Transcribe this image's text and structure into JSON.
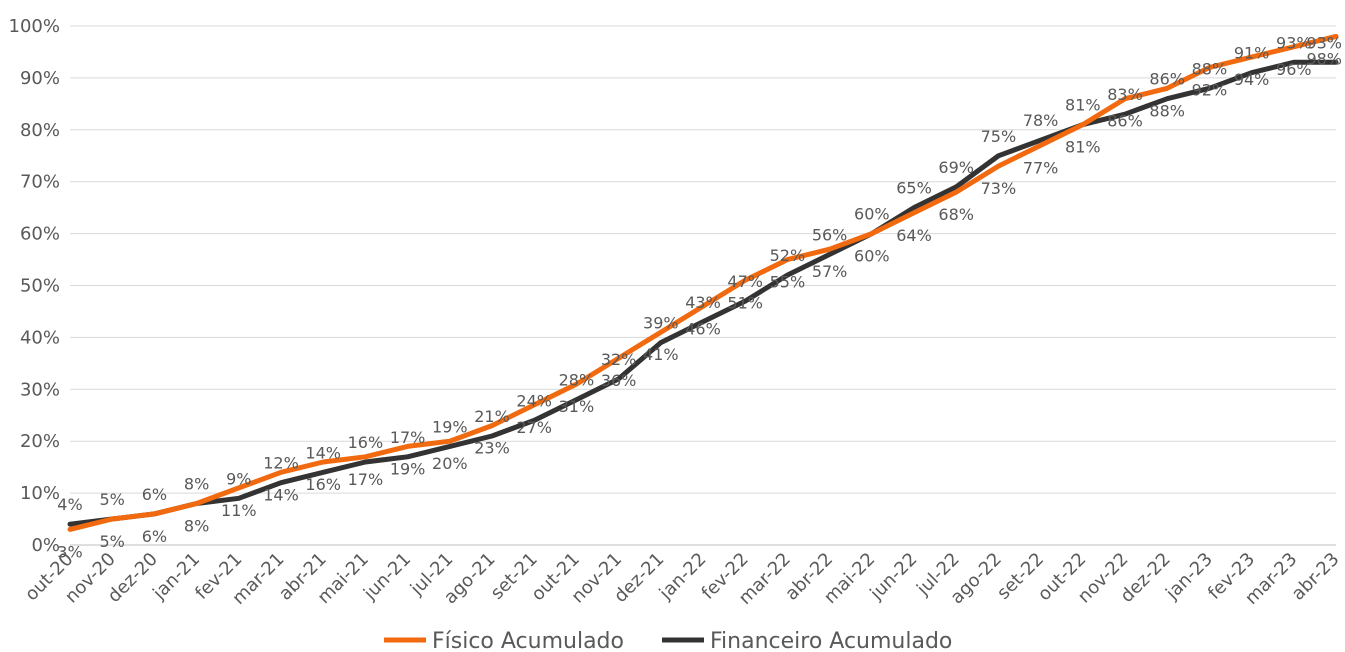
{
  "chart_data": {
    "type": "line",
    "title": "",
    "xlabel": "",
    "ylabel": "",
    "ylim": [
      0,
      100
    ],
    "y_ticks": [
      "0%",
      "10%",
      "20%",
      "30%",
      "40%",
      "50%",
      "60%",
      "70%",
      "80%",
      "90%",
      "100%"
    ],
    "grid": true,
    "legend_position": "bottom",
    "categories": [
      "out-20",
      "nov-20",
      "dez-20",
      "jan-21",
      "fev-21",
      "mar-21",
      "abr-21",
      "mai-21",
      "jun-21",
      "jul-21",
      "ago-21",
      "set-21",
      "out-21",
      "nov-21",
      "dez-21",
      "jan-22",
      "fev-22",
      "mar-22",
      "abr-22",
      "mai-22",
      "jun-22",
      "jul-22",
      "ago-22",
      "set-22",
      "out-22",
      "nov-22",
      "dez-22",
      "jan-23",
      "fev-23",
      "mar-23",
      "abr-23"
    ],
    "series": [
      {
        "name": "Físico Acumulado",
        "color": "#F26A0F",
        "values": [
          3,
          5,
          6,
          8,
          11,
          14,
          16,
          17,
          19,
          20,
          23,
          27,
          31,
          36,
          41,
          46,
          51,
          55,
          57,
          60,
          64,
          68,
          73,
          77,
          81,
          86,
          88,
          92,
          94,
          96,
          98
        ]
      },
      {
        "name": "Financeiro Acumulado",
        "color": "#333333",
        "values": [
          4,
          5,
          6,
          8,
          9,
          12,
          14,
          16,
          17,
          19,
          21,
          24,
          28,
          32,
          39,
          43,
          47,
          52,
          56,
          60,
          65,
          69,
          75,
          78,
          81,
          83,
          86,
          88,
          91,
          93,
          93
        ]
      }
    ]
  }
}
